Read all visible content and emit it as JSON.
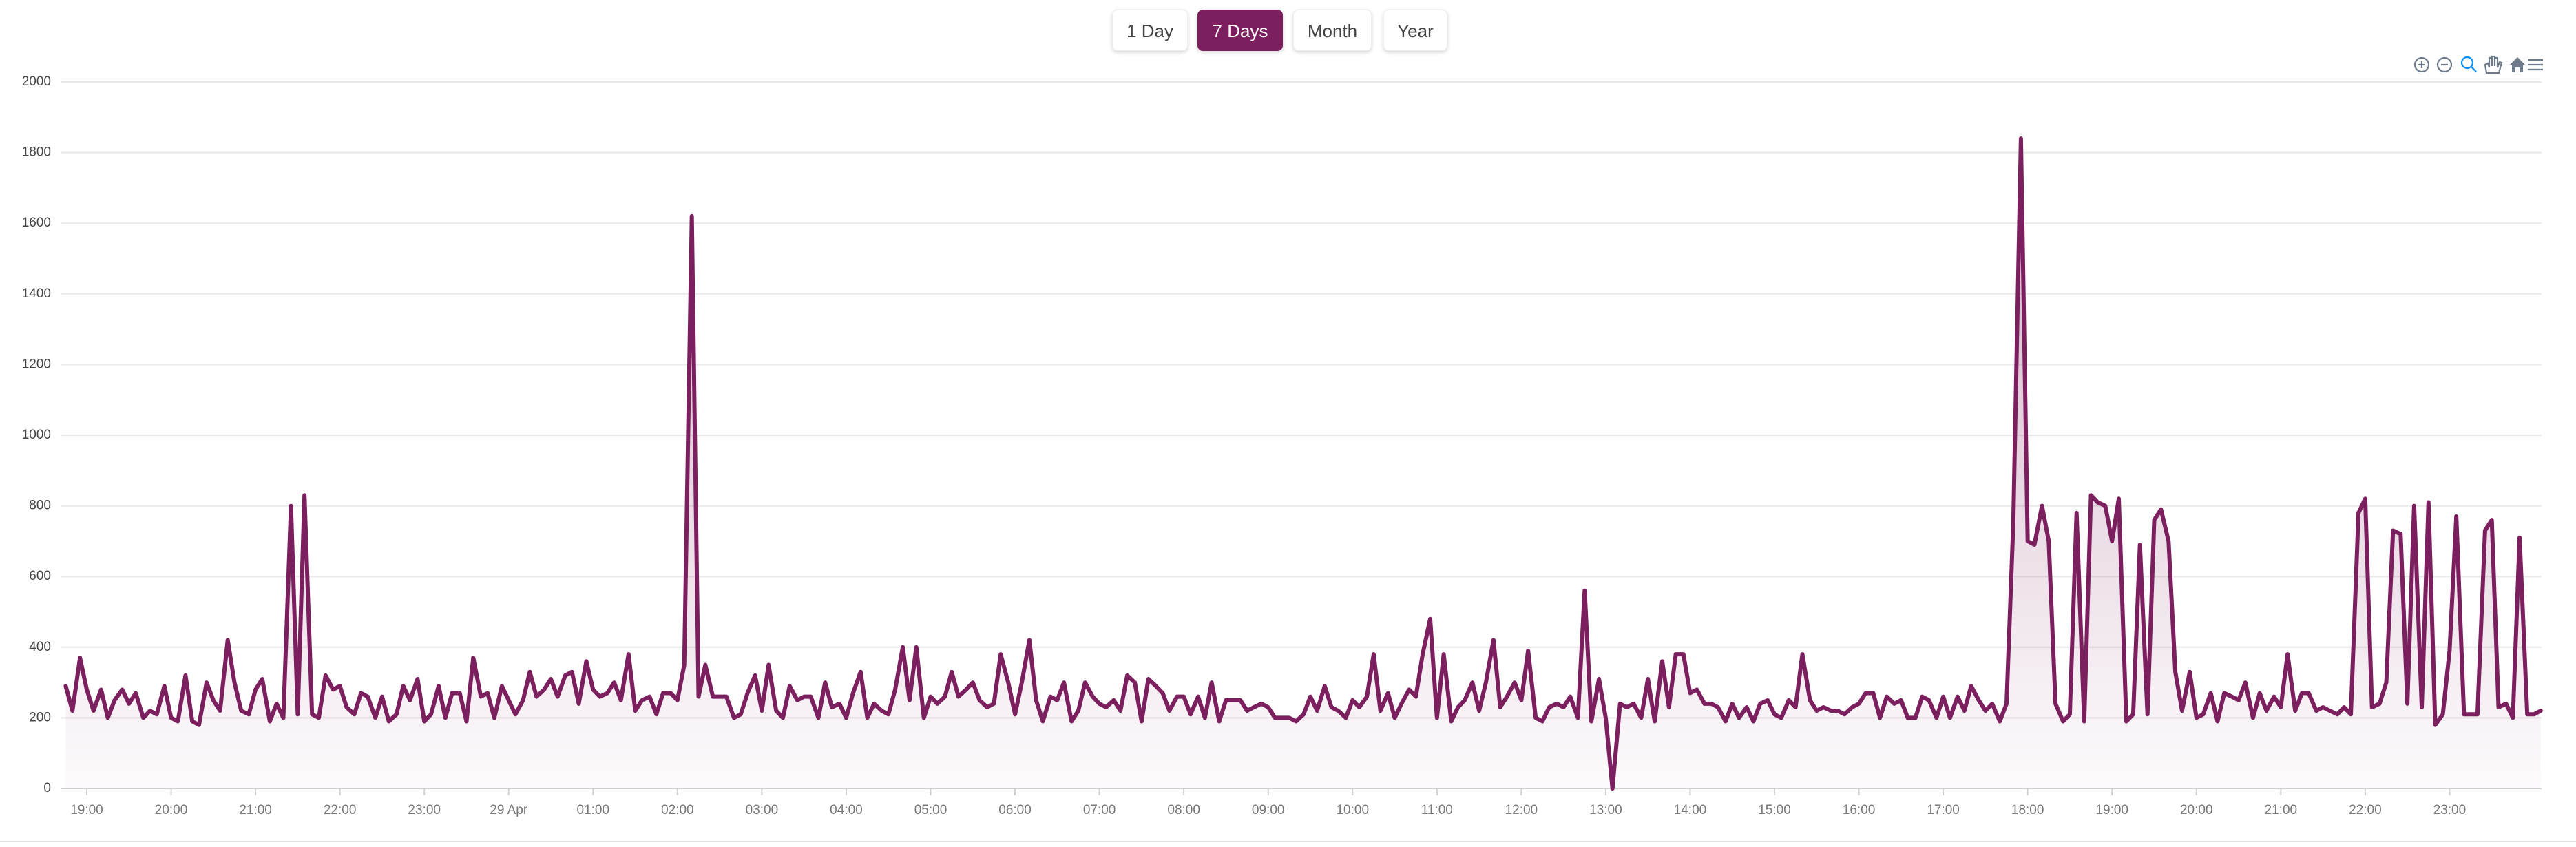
{
  "buttons": [
    "1 Day",
    "7 Days",
    "Month",
    "Year"
  ],
  "selected": "7 Days",
  "chart_data": {
    "type": "area",
    "color": "#7c1f5f",
    "grid": true,
    "xlim": [
      18.69,
      48.09
    ],
    "xticks": [
      {
        "value": 19,
        "label": "19:00"
      },
      {
        "value": 20,
        "label": "20:00"
      },
      {
        "value": 21,
        "label": "21:00"
      },
      {
        "value": 22,
        "label": "22:00"
      },
      {
        "value": 23,
        "label": "23:00"
      },
      {
        "value": 24,
        "label": "29 Apr"
      },
      {
        "value": 25,
        "label": "01:00"
      },
      {
        "value": 26,
        "label": "02:00"
      },
      {
        "value": 27,
        "label": "03:00"
      },
      {
        "value": 28,
        "label": "04:00"
      },
      {
        "value": 29,
        "label": "05:00"
      },
      {
        "value": 30,
        "label": "06:00"
      },
      {
        "value": 31,
        "label": "07:00"
      },
      {
        "value": 32,
        "label": "08:00"
      },
      {
        "value": 33,
        "label": "09:00"
      },
      {
        "value": 34,
        "label": "10:00"
      },
      {
        "value": 35,
        "label": "11:00"
      },
      {
        "value": 36,
        "label": "12:00"
      },
      {
        "value": 37,
        "label": "13:00"
      },
      {
        "value": 38,
        "label": "14:00"
      },
      {
        "value": 39,
        "label": "15:00"
      },
      {
        "value": 40,
        "label": "16:00"
      },
      {
        "value": 41,
        "label": "17:00"
      },
      {
        "value": 42,
        "label": "18:00"
      },
      {
        "value": 43,
        "label": "19:00"
      },
      {
        "value": 44,
        "label": "20:00"
      },
      {
        "value": 45,
        "label": "21:00"
      },
      {
        "value": 46,
        "label": "22:00"
      },
      {
        "value": 47,
        "label": "23:00"
      }
    ],
    "ylim": [
      0,
      2000
    ],
    "yticks": [
      0,
      200,
      400,
      600,
      800,
      1000,
      1200,
      1400,
      1600,
      1800,
      2000
    ],
    "x": [
      18.75,
      18.83,
      18.92,
      19,
      19.08,
      19.17,
      19.25,
      19.33,
      19.42,
      19.5,
      19.58,
      19.67,
      19.75,
      19.83,
      19.92,
      20,
      20.08,
      20.17,
      20.25,
      20.33,
      20.42,
      20.5,
      20.58,
      20.67,
      20.75,
      20.83,
      20.92,
      21,
      21.08,
      21.17,
      21.25,
      21.33,
      21.42,
      21.5,
      21.58,
      21.67,
      21.75,
      21.83,
      21.92,
      22,
      22.08,
      22.17,
      22.25,
      22.33,
      22.42,
      22.5,
      22.58,
      22.67,
      22.75,
      22.83,
      22.92,
      23,
      23.08,
      23.17,
      23.25,
      23.33,
      23.42,
      23.5,
      23.58,
      23.67,
      23.75,
      23.83,
      23.92,
      24,
      24.08,
      24.17,
      24.25,
      24.33,
      24.42,
      24.5,
      24.58,
      24.67,
      24.75,
      24.83,
      24.92,
      25,
      25.08,
      25.17,
      25.25,
      25.33,
      25.42,
      25.5,
      25.58,
      25.67,
      25.75,
      25.83,
      25.92,
      26,
      26.08,
      26.17,
      26.25,
      26.33,
      26.42,
      26.5,
      26.58,
      26.67,
      26.75,
      26.83,
      26.92,
      27,
      27.08,
      27.17,
      27.25,
      27.33,
      27.42,
      27.5,
      27.58,
      27.67,
      27.75,
      27.83,
      27.92,
      28,
      28.08,
      28.17,
      28.25,
      28.33,
      28.42,
      28.5,
      28.58,
      28.67,
      28.75,
      28.83,
      28.92,
      29,
      29.08,
      29.17,
      29.25,
      29.33,
      29.42,
      29.5,
      29.58,
      29.67,
      29.75,
      29.83,
      29.92,
      30,
      30.08,
      30.17,
      30.25,
      30.33,
      30.42,
      30.5,
      30.58,
      30.67,
      30.75,
      30.83,
      30.92,
      31,
      31.08,
      31.17,
      31.25,
      31.33,
      31.42,
      31.5,
      31.58,
      31.67,
      31.75,
      31.83,
      31.92,
      32,
      32.08,
      32.17,
      32.25,
      32.33,
      32.42,
      32.5,
      32.58,
      32.67,
      32.75,
      32.83,
      32.92,
      33,
      33.08,
      33.17,
      33.25,
      33.33,
      33.42,
      33.5,
      33.58,
      33.67,
      33.75,
      33.83,
      33.92,
      34,
      34.08,
      34.17,
      34.25,
      34.33,
      34.42,
      34.5,
      34.58,
      34.67,
      34.75,
      34.83,
      34.92,
      35,
      35.08,
      35.17,
      35.25,
      35.33,
      35.42,
      35.5,
      35.58,
      35.67,
      35.75,
      35.83,
      35.92,
      36,
      36.08,
      36.17,
      36.25,
      36.33,
      36.42,
      36.5,
      36.58,
      36.67,
      36.75,
      36.83,
      36.92,
      37,
      37.08,
      37.17,
      37.25,
      37.33,
      37.42,
      37.5,
      37.58,
      37.67,
      37.75,
      37.83,
      37.92,
      38,
      38.08,
      38.17,
      38.25,
      38.33,
      38.42,
      38.5,
      38.58,
      38.67,
      38.75,
      38.83,
      38.92,
      39,
      39.08,
      39.17,
      39.25,
      39.33,
      39.42,
      39.5,
      39.58,
      39.67,
      39.75,
      39.83,
      39.92,
      40,
      40.08,
      40.17,
      40.25,
      40.33,
      40.42,
      40.5,
      40.58,
      40.67,
      40.75,
      40.83,
      40.92,
      41,
      41.08,
      41.17,
      41.25,
      41.33,
      41.42,
      41.5,
      41.58,
      41.67,
      41.75,
      41.83,
      41.92,
      42,
      42.08,
      42.17,
      42.25,
      42.33,
      42.42,
      42.5,
      42.58,
      42.67,
      42.75,
      42.83,
      42.92,
      43,
      43.08,
      43.17,
      43.25,
      43.33,
      43.42,
      43.5,
      43.58,
      43.67,
      43.75,
      43.83,
      43.92,
      44,
      44.08,
      44.17,
      44.25,
      44.33,
      44.42,
      44.5,
      44.58,
      44.67,
      44.75,
      44.83,
      44.92,
      45,
      45.08,
      45.17,
      45.25,
      45.33,
      45.42,
      45.5,
      45.58,
      45.67,
      45.75,
      45.83,
      45.92,
      46,
      46.08,
      46.17,
      46.25,
      46.33,
      46.42,
      46.5,
      46.58,
      46.67,
      46.75,
      46.83,
      46.92,
      47,
      47.08,
      47.17,
      47.25,
      47.33,
      47.42,
      47.5,
      47.58,
      47.67,
      47.75,
      47.83,
      47.92,
      48,
      48.08
    ],
    "series": [
      {
        "values": [
          290,
          220,
          370,
          280,
          220,
          280,
          200,
          250,
          280,
          240,
          270,
          200,
          220,
          210,
          290,
          200,
          190,
          320,
          190,
          180,
          300,
          250,
          220,
          420,
          300,
          220,
          210,
          280,
          310,
          190,
          240,
          200,
          800,
          210,
          830,
          210,
          200,
          320,
          280,
          290,
          230,
          210,
          270,
          260,
          200,
          260,
          190,
          210,
          290,
          250,
          310,
          190,
          210,
          290,
          200,
          270,
          270,
          190,
          370,
          260,
          270,
          200,
          290,
          250,
          210,
          250,
          330,
          260,
          280,
          310,
          260,
          320,
          330,
          240,
          360,
          280,
          260,
          270,
          300,
          250,
          380,
          220,
          250,
          260,
          210,
          270,
          270,
          250,
          350,
          1620,
          260,
          350,
          260,
          260,
          260,
          200,
          210,
          270,
          320,
          220,
          350,
          220,
          200,
          290,
          250,
          260,
          260,
          200,
          300,
          230,
          240,
          200,
          270,
          330,
          200,
          240,
          220,
          210,
          280,
          400,
          250,
          400,
          200,
          260,
          240,
          260,
          330,
          260,
          280,
          300,
          250,
          230,
          240,
          380,
          300,
          210,
          300,
          420,
          250,
          190,
          260,
          250,
          300,
          190,
          220,
          300,
          260,
          240,
          230,
          250,
          220,
          320,
          300,
          190,
          310,
          290,
          270,
          220,
          260,
          260,
          210,
          260,
          200,
          300,
          190,
          250,
          250,
          250,
          220,
          230,
          240,
          230,
          200,
          200,
          200,
          190,
          210,
          260,
          220,
          290,
          230,
          220,
          200,
          250,
          230,
          260,
          380,
          220,
          270,
          200,
          240,
          280,
          260,
          380,
          480,
          200,
          380,
          190,
          230,
          250,
          300,
          220,
          300,
          420,
          230,
          260,
          300,
          250,
          390,
          200,
          190,
          230,
          240,
          230,
          260,
          200,
          560,
          190,
          310,
          200,
          0,
          240,
          230,
          240,
          200,
          310,
          190,
          360,
          230,
          380,
          380,
          270,
          280,
          240,
          240,
          230,
          190,
          240,
          200,
          230,
          190,
          240,
          250,
          210,
          200,
          250,
          230,
          380,
          250,
          220,
          230,
          220,
          220,
          210,
          230,
          240,
          270,
          270,
          200,
          260,
          240,
          250,
          200,
          200,
          260,
          250,
          200,
          260,
          200,
          260,
          220,
          290,
          250,
          220,
          240,
          190,
          240,
          750,
          1840,
          700,
          690,
          800,
          700,
          240,
          190,
          210,
          780,
          190,
          830,
          810,
          800,
          700,
          820,
          190,
          210,
          690,
          210,
          760,
          790,
          700,
          330,
          220,
          330,
          200,
          210,
          270,
          190,
          270,
          260,
          250,
          300,
          200,
          270,
          220,
          260,
          230,
          380,
          220,
          270,
          270,
          220,
          230,
          220,
          210,
          230,
          210,
          780,
          820,
          230,
          240,
          300,
          730,
          720,
          240,
          800,
          230,
          810,
          180,
          210,
          390,
          770,
          210,
          210,
          210,
          730,
          760,
          230,
          240,
          200,
          710,
          210,
          210,
          220
        ]
      }
    ]
  }
}
